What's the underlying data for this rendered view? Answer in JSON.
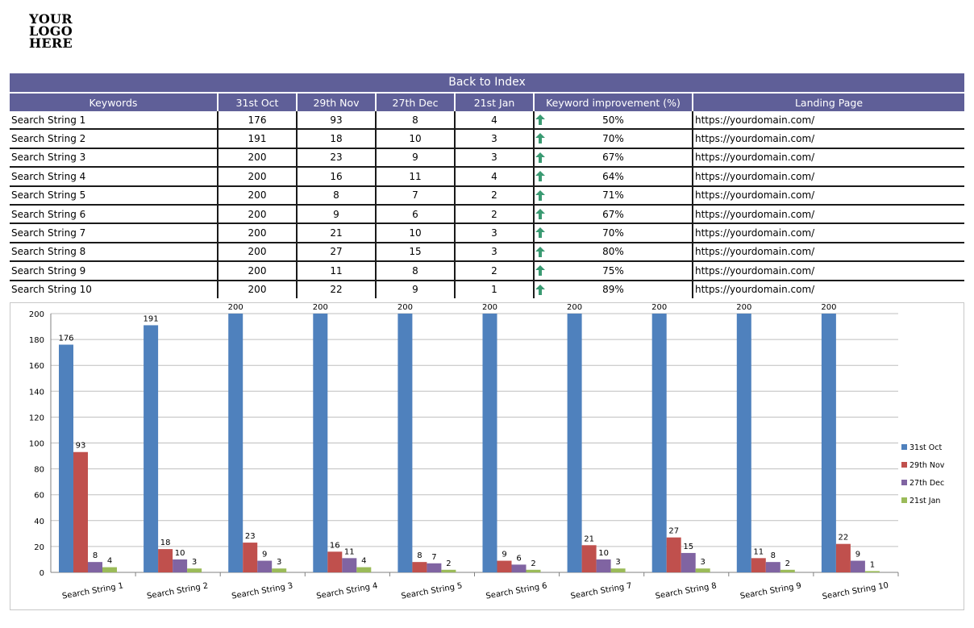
{
  "logo": {
    "lines": [
      "YOUR",
      "LOGO",
      "HERE"
    ]
  },
  "back_to_index": "Back to Index",
  "table": {
    "headers": [
      "Keywords",
      "31st Oct",
      "29th Nov",
      "27th Dec",
      "21st Jan",
      "Keyword improvement (%)",
      "Landing Page"
    ],
    "improvement_icon": "arrow-up-icon",
    "rows": [
      {
        "keyword": "Search String 1",
        "oct": "176",
        "nov": "93",
        "dec": "8",
        "jan": "4",
        "improvement": "50%",
        "landing": "https://yourdomain.com/"
      },
      {
        "keyword": "Search String 2",
        "oct": "191",
        "nov": "18",
        "dec": "10",
        "jan": "3",
        "improvement": "70%",
        "landing": "https://yourdomain.com/"
      },
      {
        "keyword": "Search String 3",
        "oct": "200",
        "nov": "23",
        "dec": "9",
        "jan": "3",
        "improvement": "67%",
        "landing": "https://yourdomain.com/"
      },
      {
        "keyword": "Search String 4",
        "oct": "200",
        "nov": "16",
        "dec": "11",
        "jan": "4",
        "improvement": "64%",
        "landing": "https://yourdomain.com/"
      },
      {
        "keyword": "Search String 5",
        "oct": "200",
        "nov": "8",
        "dec": "7",
        "jan": "2",
        "improvement": "71%",
        "landing": "https://yourdomain.com/"
      },
      {
        "keyword": "Search String 6",
        "oct": "200",
        "nov": "9",
        "dec": "6",
        "jan": "2",
        "improvement": "67%",
        "landing": "https://yourdomain.com/"
      },
      {
        "keyword": "Search String 7",
        "oct": "200",
        "nov": "21",
        "dec": "10",
        "jan": "3",
        "improvement": "70%",
        "landing": "https://yourdomain.com/"
      },
      {
        "keyword": "Search String 8",
        "oct": "200",
        "nov": "27",
        "dec": "15",
        "jan": "3",
        "improvement": "80%",
        "landing": "https://yourdomain.com/"
      },
      {
        "keyword": "Search String 9",
        "oct": "200",
        "nov": "11",
        "dec": "8",
        "jan": "2",
        "improvement": "75%",
        "landing": "https://yourdomain.com/"
      },
      {
        "keyword": "Search String 10",
        "oct": "200",
        "nov": "22",
        "dec": "9",
        "jan": "1",
        "improvement": "89%",
        "landing": "https://yourdomain.com/"
      }
    ]
  },
  "colors": {
    "header_bg": "#5f5f98",
    "arrow_green": "#3a9a72",
    "series": [
      "#4f81bd",
      "#c0504d",
      "#8064a2",
      "#9bbb59"
    ]
  },
  "chart_data": {
    "type": "bar",
    "categories": [
      "Search String 1",
      "Search String 2",
      "Search String 3",
      "Search String 4",
      "Search String 5",
      "Search String 6",
      "Search String 7",
      "Search String 8",
      "Search String 9",
      "Search String 10"
    ],
    "series": [
      {
        "name": "31st Oct",
        "values": [
          176,
          191,
          200,
          200,
          200,
          200,
          200,
          200,
          200,
          200
        ]
      },
      {
        "name": "29th Nov",
        "values": [
          93,
          18,
          23,
          16,
          8,
          9,
          21,
          27,
          11,
          22
        ]
      },
      {
        "name": "27th Dec",
        "values": [
          8,
          10,
          9,
          11,
          7,
          6,
          10,
          15,
          8,
          9
        ]
      },
      {
        "name": "21st Jan",
        "values": [
          4,
          3,
          3,
          4,
          2,
          2,
          3,
          3,
          2,
          1
        ]
      }
    ],
    "data_labels_for_series": [
      0,
      1,
      2,
      3
    ],
    "ylim": [
      0,
      200
    ],
    "yticks": [
      0,
      20,
      40,
      60,
      80,
      100,
      120,
      140,
      160,
      180,
      200
    ],
    "grid": true,
    "legend": "right"
  }
}
